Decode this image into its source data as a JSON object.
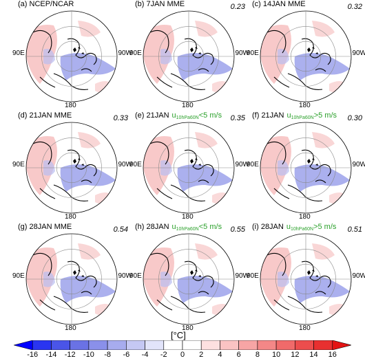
{
  "panels": [
    {
      "id": "a",
      "label": "(a) NCEP/NCAR",
      "title_main": "",
      "subscript": "",
      "threshold": "",
      "score": ""
    },
    {
      "id": "b",
      "label": "(b) 7JAN MME",
      "title_main": "",
      "subscript": "",
      "threshold": "",
      "score": "0.23"
    },
    {
      "id": "c",
      "label": "(c) 14JAN MME",
      "title_main": "",
      "subscript": "",
      "threshold": "",
      "score": "0.32"
    },
    {
      "id": "d",
      "label": "(d) 21JAN MME",
      "title_main": "",
      "subscript": "",
      "threshold": "",
      "score": "0.33"
    },
    {
      "id": "e",
      "label": "(e) 21JAN",
      "title_main": "u",
      "subscript": "10hPa60N",
      "threshold": "<5 m/s",
      "score": "0.35"
    },
    {
      "id": "f",
      "label": "(f) 21JAN",
      "title_main": "u",
      "subscript": "10hPa60N",
      "threshold": ">5 m/s",
      "score": "0.30"
    },
    {
      "id": "g",
      "label": "(g) 28JAN MME",
      "title_main": "",
      "subscript": "",
      "threshold": "",
      "score": "0.54"
    },
    {
      "id": "h",
      "label": "(h) 28JAN",
      "title_main": "u",
      "subscript": "10hPa60N",
      "threshold": "<5 m/s",
      "score": "0.55"
    },
    {
      "id": "i",
      "label": "(i) 28JAN",
      "title_main": "u",
      "subscript": "10hPa60N",
      "threshold": ">5 m/s",
      "score": "0.51"
    }
  ],
  "map_labels": {
    "left": "90E",
    "right": "90W",
    "bottom": "180"
  },
  "colorbar": {
    "units": "[°C]",
    "ticks": [
      "-16",
      "-14",
      "-12",
      "-10",
      "-8",
      "-6",
      "-4",
      "-2",
      "0",
      "2",
      "4",
      "6",
      "8",
      "10",
      "12",
      "14",
      "16"
    ],
    "colors": [
      "#0000ff",
      "#2a35f0",
      "#4a55e8",
      "#6a72e5",
      "#8a90ea",
      "#a7acee",
      "#c5c8f4",
      "#e2e4fa",
      "#ffffff",
      "#ffffff",
      "#fde0e0",
      "#fac3c3",
      "#f7a5a5",
      "#f48787",
      "#f06a6a",
      "#ec4d4d",
      "#e83030",
      "#e41414"
    ]
  }
}
